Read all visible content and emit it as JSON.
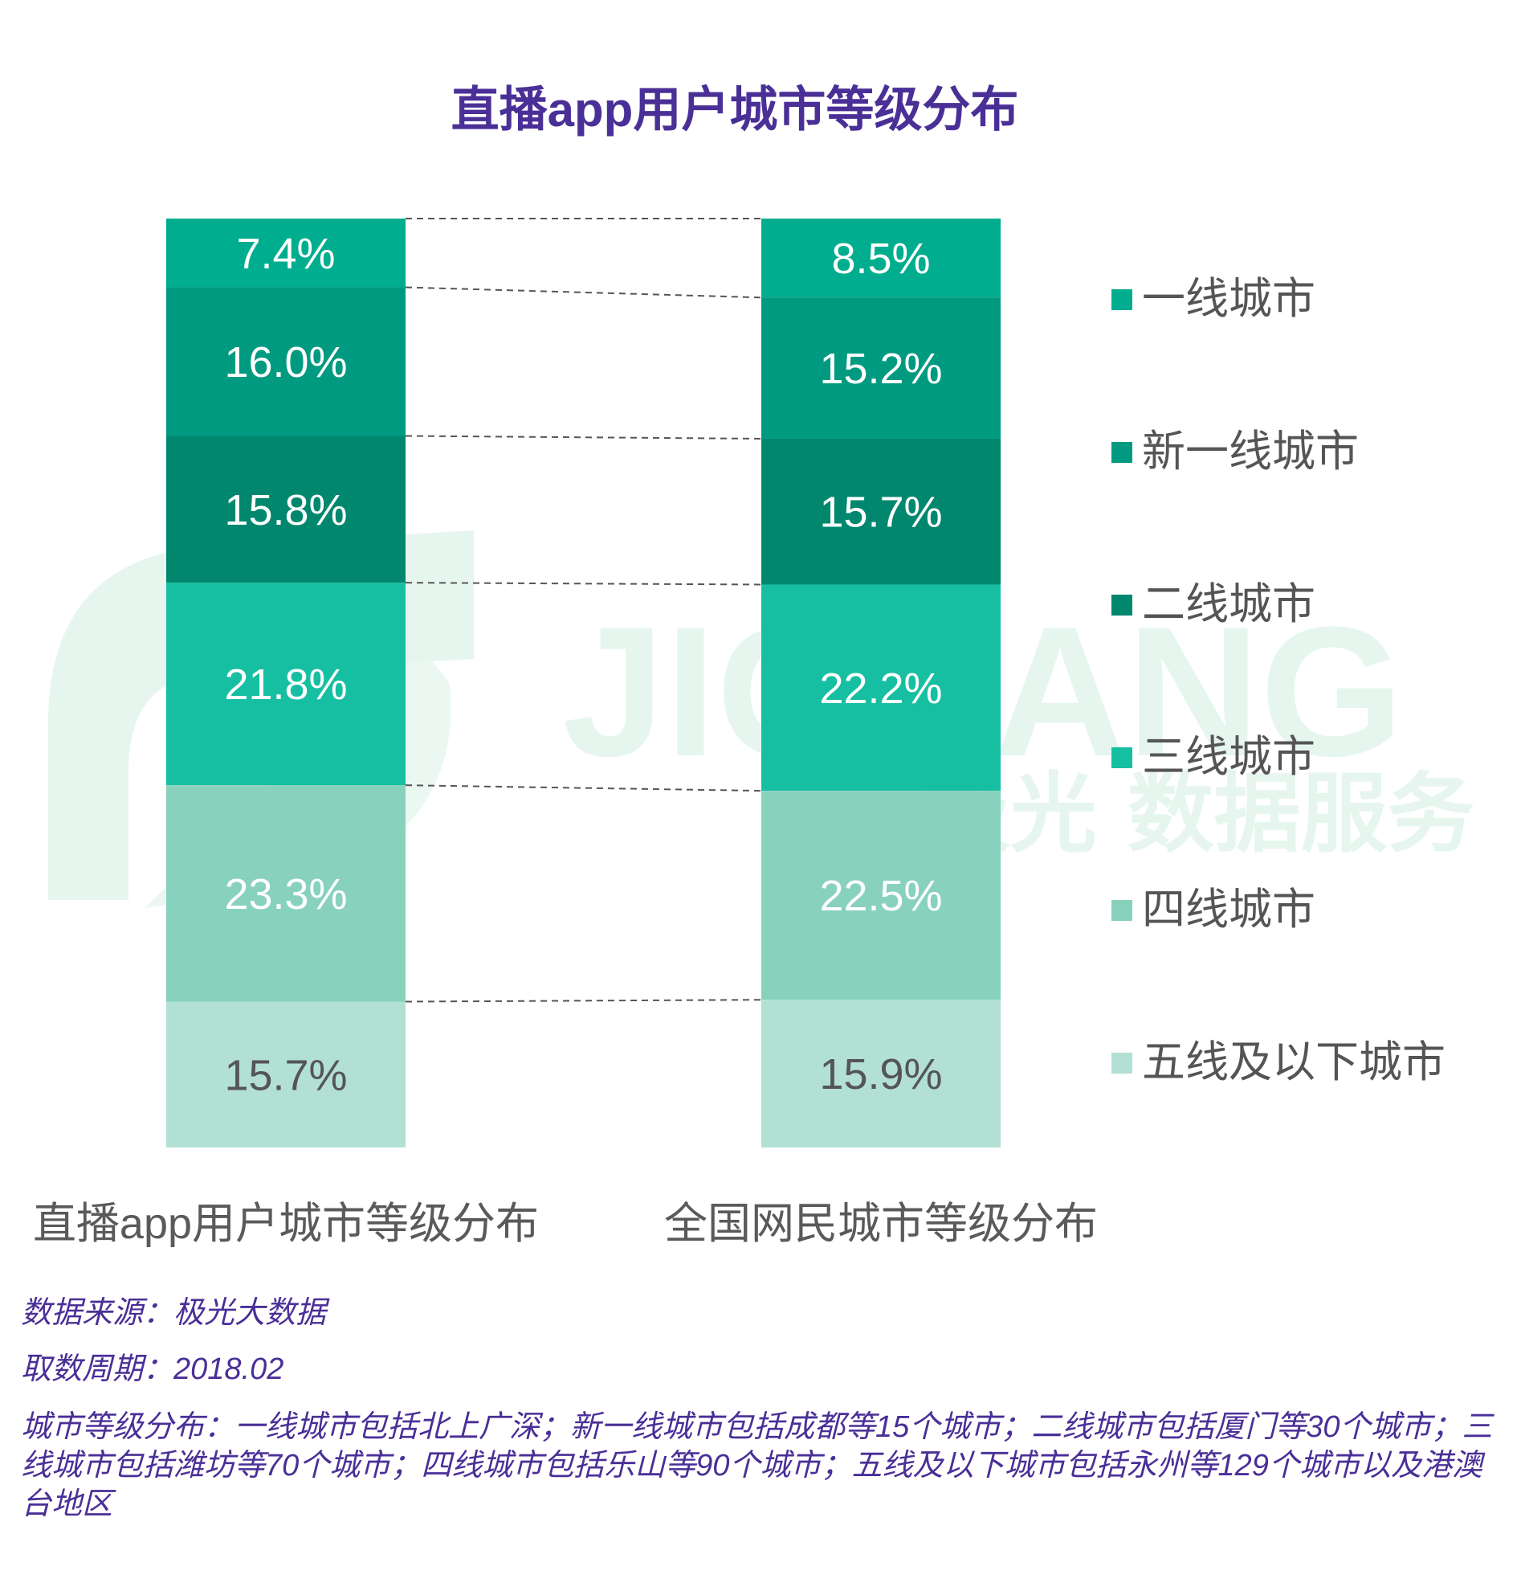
{
  "title": "直播app用户城市等级分布",
  "chart_data": {
    "type": "bar",
    "stacked": true,
    "normalized": true,
    "categories": [
      "直播app用户城市等级分布",
      "全国网民城市等级分布"
    ],
    "series": [
      {
        "name": "一线城市",
        "values": [
          7.4,
          8.5
        ],
        "labels": [
          "7.4%",
          "8.5%"
        ],
        "color": "#00ad8e"
      },
      {
        "name": "新一线城市",
        "values": [
          16.0,
          15.2
        ],
        "labels": [
          "16.0%",
          "15.2%"
        ],
        "color": "#009a80"
      },
      {
        "name": "二线城市",
        "values": [
          15.8,
          15.7
        ],
        "labels": [
          "15.8%",
          "15.7%"
        ],
        "color": "#00876e"
      },
      {
        "name": "三线城市",
        "values": [
          21.8,
          22.2
        ],
        "labels": [
          "21.8%",
          "22.2%"
        ],
        "color": "#17bfa2"
      },
      {
        "name": "四线城市",
        "values": [
          23.3,
          22.5
        ],
        "labels": [
          "23.3%",
          "22.5%"
        ],
        "color": "#88d1bd"
      },
      {
        "name": "五线及以下城市",
        "values": [
          15.7,
          15.9
        ],
        "labels": [
          "15.7%",
          "15.9%"
        ],
        "color": "#b2e0d4"
      }
    ],
    "label_colors": [
      "#ffffff",
      "#ffffff",
      "#ffffff",
      "#ffffff",
      "#ffffff",
      "#555555"
    ],
    "legend_position": "right",
    "grid": false
  },
  "footnotes": {
    "source": "数据来源：极光大数据",
    "period": "取数周期：2018.02",
    "definition": "城市等级分布：一线城市包括北上广深；新一线城市包括成都等15个城市；二线城市包括厦门等30个城市；三线城市包括潍坊等70个城市；四线城市包括乐山等90个城市；五线及以下城市包括永州等129个城市以及港澳台地区"
  },
  "watermark": {
    "text_latin": "JIGUANG",
    "text_cn": "极光 数据服务",
    "color": "#e6f6ef"
  }
}
